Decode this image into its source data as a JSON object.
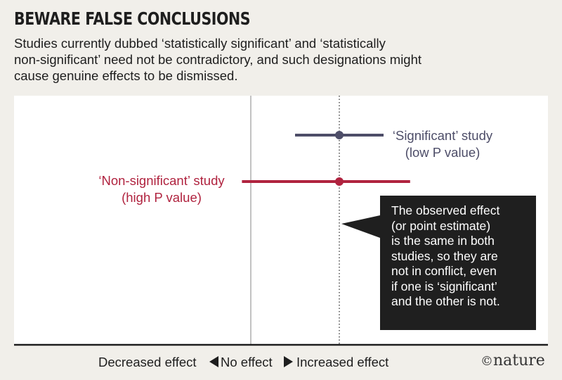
{
  "header": {
    "title": "BEWARE FALSE CONCLUSIONS",
    "subtitle_lines": [
      "Studies currently dubbed ‘statistically significant’ and ‘statistically",
      "non-significant’ need not be contradictory, and such designations might",
      "cause genuine effects to be dismissed."
    ]
  },
  "chart_data": {
    "type": "scatter",
    "title": "BEWARE FALSE CONCLUSIONS",
    "xlabel": "",
    "x_tick_labels": [
      "Decreased effect",
      "No effect",
      "Increased effect"
    ],
    "null_line": 0,
    "observed_effect_line": 1,
    "xlim": [
      -2.5,
      3.5
    ],
    "grid": false,
    "series": [
      {
        "name": "‘Significant’ study",
        "label_lines": [
          "‘Significant’ study",
          "(low P value)"
        ],
        "point_estimate": 1,
        "ci_low": 0.5,
        "ci_high": 1.5,
        "color": "#4d4d68"
      },
      {
        "name": "‘Non-significant’ study",
        "label_lines": [
          "‘Non-significant’ study",
          "(high P value)"
        ],
        "point_estimate": 1,
        "ci_low": -0.1,
        "ci_high": 1.8,
        "color": "#b0233f"
      }
    ],
    "annotation_lines": [
      "The observed effect",
      "(or point estimate)",
      "is the same in both",
      "studies, so they are",
      "not in conflict, even",
      "if one is ‘significant’",
      "and the other is not."
    ]
  },
  "axis": {
    "decreased": "Decreased effect",
    "no_effect": "No effect",
    "increased": "Increased effect"
  },
  "brand": {
    "copyright": "©",
    "name": "nature"
  },
  "colors": {
    "background": "#f1efea",
    "plot": "#ffffff",
    "significant": "#4d4d68",
    "non_significant": "#b0233f",
    "callout": "#1f1f1f"
  }
}
